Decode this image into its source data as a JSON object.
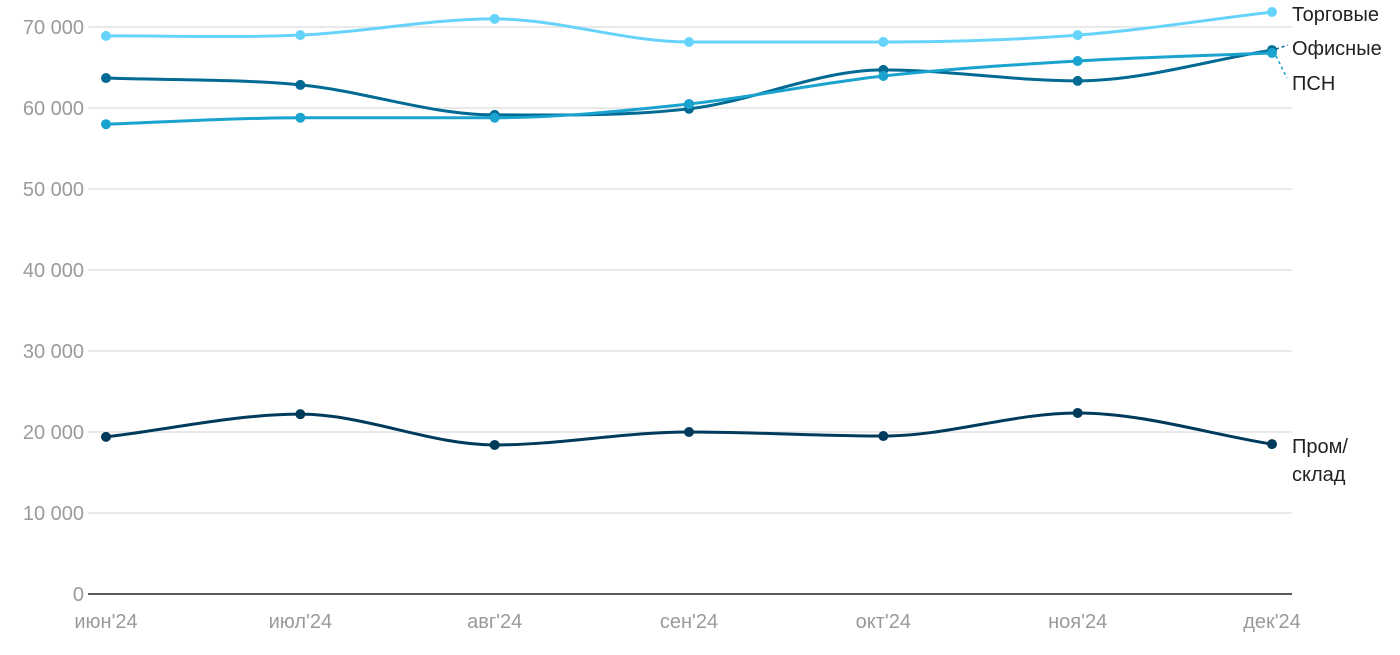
{
  "chart_data": {
    "type": "line",
    "title": "",
    "xlabel": "",
    "ylabel": "",
    "x": [
      "июн'24",
      "июл'24",
      "авг'24",
      "сен'24",
      "окт'24",
      "ноя'24",
      "дек'24"
    ],
    "ylim": [
      0,
      70000
    ],
    "yticks": [
      0,
      10000,
      20000,
      30000,
      40000,
      50000,
      60000,
      70000
    ],
    "ytick_labels": [
      "0",
      "10 000",
      "20 000",
      "30 000",
      "40 000",
      "50 000",
      "60 000",
      "70 000"
    ],
    "grid": true,
    "legend": "end-of-line labels",
    "series": [
      {
        "name": "Торговые",
        "label_lines": [
          "Торговые"
        ],
        "color": "#66d4fa",
        "values": [
          68900,
          69000,
          71000,
          68150,
          68150,
          69000,
          71850
        ]
      },
      {
        "name": "Офисные",
        "label_lines": [
          "Офисные"
        ],
        "color": "#006a93",
        "values": [
          63700,
          62850,
          59150,
          59900,
          64700,
          63350,
          67150
        ]
      },
      {
        "name": "ПСН",
        "label_lines": [
          "ПСН"
        ],
        "color": "#1ba3cf",
        "values": [
          58000,
          58800,
          58800,
          60500,
          63950,
          65800,
          66800
        ]
      },
      {
        "name": "Пром/склад",
        "label_lines": [
          "Пром/",
          "склад"
        ],
        "color": "#003b5c",
        "values": [
          19400,
          22200,
          18400,
          20000,
          19500,
          22350,
          18500
        ]
      }
    ]
  }
}
